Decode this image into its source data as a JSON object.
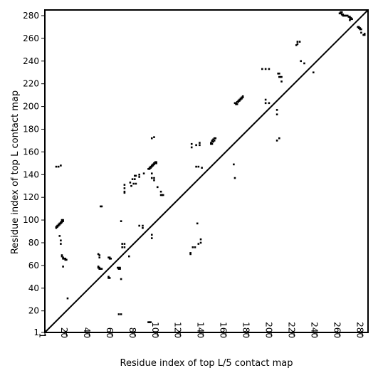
{
  "chart_data": {
    "type": "scatter",
    "title": "",
    "xlabel": "Residue index of top L/5 contact map",
    "ylabel": "Residue index of top L contact map",
    "xlim": [
      1,
      285
    ],
    "ylim": [
      1,
      285
    ],
    "x_ticks": [
      1,
      20,
      40,
      60,
      80,
      100,
      120,
      140,
      160,
      180,
      200,
      220,
      240,
      260,
      280
    ],
    "y_ticks": [
      1,
      20,
      40,
      60,
      80,
      100,
      120,
      140,
      160,
      180,
      200,
      220,
      240,
      260,
      280
    ],
    "x_tick_rotation": -90,
    "grid": false,
    "legend": "none",
    "diagonal_line": true,
    "colors": {
      "points": "#000000",
      "diagonal": "#000000",
      "axes": "#000000"
    },
    "series": [
      {
        "marker": "square",
        "points": [
          [
            11,
            93
          ],
          [
            11,
            94
          ],
          [
            12,
            94
          ],
          [
            12,
            95
          ],
          [
            13,
            95
          ],
          [
            13,
            96
          ],
          [
            14,
            96
          ],
          [
            14,
            97
          ],
          [
            15,
            97
          ],
          [
            15,
            98
          ],
          [
            16,
            98
          ],
          [
            16,
            99
          ],
          [
            17,
            99
          ],
          [
            17,
            100
          ],
          [
            16,
            100
          ],
          [
            11,
            147
          ],
          [
            13,
            147
          ],
          [
            15,
            148
          ],
          [
            14,
            86
          ],
          [
            15,
            82
          ],
          [
            15,
            79
          ],
          [
            16,
            68
          ],
          [
            16,
            69
          ],
          [
            17,
            66
          ],
          [
            17,
            67
          ],
          [
            18,
            66
          ],
          [
            19,
            66
          ],
          [
            19,
            65
          ],
          [
            20,
            65
          ],
          [
            17,
            59
          ],
          [
            21,
            31
          ],
          [
            48,
            70
          ],
          [
            49,
            69
          ],
          [
            49,
            67
          ],
          [
            48,
            59
          ],
          [
            48,
            58
          ],
          [
            49,
            58
          ],
          [
            49,
            57
          ],
          [
            50,
            57
          ],
          [
            51,
            57
          ],
          [
            50,
            112
          ],
          [
            51,
            112
          ],
          [
            57,
            67
          ],
          [
            58,
            67
          ],
          [
            58,
            66
          ],
          [
            59,
            66
          ],
          [
            57,
            50
          ],
          [
            57,
            49
          ],
          [
            58,
            49
          ],
          [
            65,
            58
          ],
          [
            66,
            58
          ],
          [
            67,
            58
          ],
          [
            66,
            57
          ],
          [
            67,
            57
          ],
          [
            66,
            17
          ],
          [
            68,
            17
          ],
          [
            68,
            99
          ],
          [
            68,
            48
          ],
          [
            69,
            79
          ],
          [
            71,
            79
          ],
          [
            69,
            76
          ],
          [
            71,
            76
          ],
          [
            71,
            131
          ],
          [
            71,
            128
          ],
          [
            71,
            125
          ],
          [
            71,
            124
          ],
          [
            75,
            68
          ],
          [
            76,
            133
          ],
          [
            77,
            130
          ],
          [
            78,
            136
          ],
          [
            80,
            136
          ],
          [
            79,
            132
          ],
          [
            81,
            132
          ],
          [
            80,
            139
          ],
          [
            81,
            139
          ],
          [
            84,
            138
          ],
          [
            84,
            140
          ],
          [
            84,
            95
          ],
          [
            87,
            95
          ],
          [
            87,
            93
          ],
          [
            88,
            141
          ],
          [
            92,
            10
          ],
          [
            93,
            10
          ],
          [
            94,
            10
          ],
          [
            92,
            145
          ],
          [
            93,
            145
          ],
          [
            93,
            146
          ],
          [
            94,
            146
          ],
          [
            94,
            147
          ],
          [
            95,
            147
          ],
          [
            95,
            148
          ],
          [
            96,
            148
          ],
          [
            96,
            149
          ],
          [
            97,
            149
          ],
          [
            97,
            150
          ],
          [
            98,
            150
          ],
          [
            98,
            151
          ],
          [
            99,
            151
          ],
          [
            99,
            150
          ],
          [
            95,
            141
          ],
          [
            95,
            137
          ],
          [
            97,
            137
          ],
          [
            97,
            135
          ],
          [
            95,
            172
          ],
          [
            97,
            173
          ],
          [
            95,
            87
          ],
          [
            95,
            84
          ],
          [
            100,
            129
          ],
          [
            103,
            125
          ],
          [
            103,
            122
          ],
          [
            104,
            122
          ],
          [
            105,
            122
          ],
          [
            129,
            71
          ],
          [
            129,
            70
          ],
          [
            130,
            167
          ],
          [
            130,
            164
          ],
          [
            131,
            76
          ],
          [
            133,
            76
          ],
          [
            134,
            147
          ],
          [
            134,
            166
          ],
          [
            135,
            97
          ],
          [
            136,
            79
          ],
          [
            136,
            147
          ],
          [
            137,
            166
          ],
          [
            137,
            168
          ],
          [
            138,
            80
          ],
          [
            138,
            83
          ],
          [
            139,
            146
          ],
          [
            147,
            167
          ],
          [
            147,
            168
          ],
          [
            148,
            167
          ],
          [
            148,
            169
          ],
          [
            148,
            170
          ],
          [
            149,
            169
          ],
          [
            149,
            171
          ],
          [
            150,
            170
          ],
          [
            150,
            172
          ],
          [
            151,
            172
          ],
          [
            167,
            149
          ],
          [
            168,
            137
          ],
          [
            168,
            203
          ],
          [
            169,
            203
          ],
          [
            169,
            202
          ],
          [
            170,
            202
          ],
          [
            170,
            204
          ],
          [
            171,
            204
          ],
          [
            171,
            205
          ],
          [
            172,
            205
          ],
          [
            172,
            206
          ],
          [
            173,
            206
          ],
          [
            173,
            207
          ],
          [
            174,
            207
          ],
          [
            174,
            208
          ],
          [
            175,
            208
          ],
          [
            175,
            209
          ],
          [
            192,
            233
          ],
          [
            195,
            233
          ],
          [
            198,
            233
          ],
          [
            195,
            206
          ],
          [
            195,
            203
          ],
          [
            198,
            203
          ],
          [
            205,
            193
          ],
          [
            205,
            197
          ],
          [
            206,
            229
          ],
          [
            207,
            229
          ],
          [
            207,
            226
          ],
          [
            208,
            226
          ],
          [
            209,
            226
          ],
          [
            209,
            222
          ],
          [
            205,
            170
          ],
          [
            207,
            172
          ],
          [
            222,
            254
          ],
          [
            223,
            255
          ],
          [
            223,
            257
          ],
          [
            225,
            257
          ],
          [
            226,
            240
          ],
          [
            229,
            238
          ],
          [
            237,
            230
          ],
          [
            260,
            282
          ],
          [
            261,
            282
          ],
          [
            261,
            283
          ],
          [
            262,
            283
          ],
          [
            262,
            281
          ],
          [
            263,
            281
          ],
          [
            263,
            280
          ],
          [
            264,
            280
          ],
          [
            265,
            280
          ],
          [
            266,
            280
          ],
          [
            267,
            280
          ],
          [
            268,
            279
          ],
          [
            269,
            279
          ],
          [
            269,
            278
          ],
          [
            270,
            278
          ],
          [
            270,
            277
          ],
          [
            271,
            277
          ],
          [
            269,
            276
          ],
          [
            276,
            270
          ],
          [
            277,
            270
          ],
          [
            277,
            269
          ],
          [
            278,
            269
          ],
          [
            278,
            268
          ],
          [
            279,
            268
          ],
          [
            279,
            265
          ],
          [
            281,
            263
          ],
          [
            282,
            263
          ],
          [
            282,
            264
          ]
        ]
      }
    ]
  }
}
